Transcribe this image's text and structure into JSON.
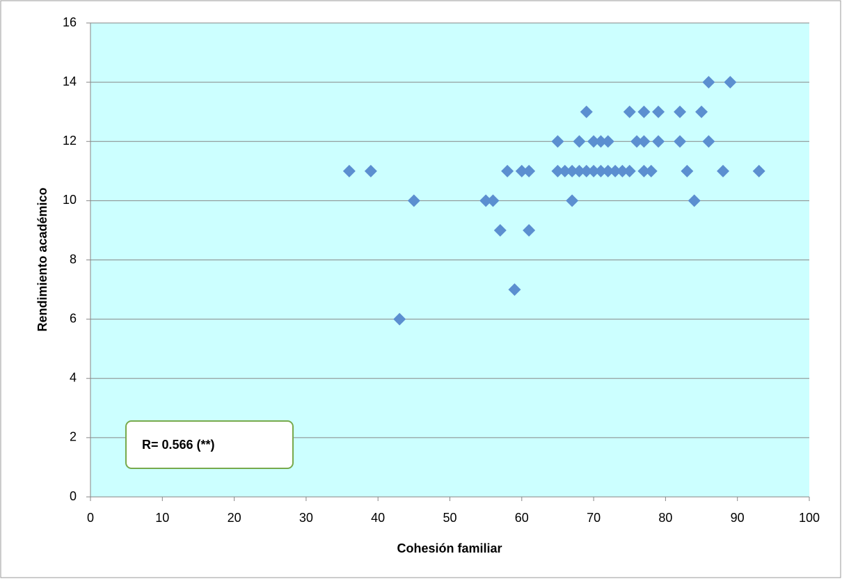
{
  "chart_data": {
    "type": "scatter",
    "x_label": "Cohesión familiar",
    "y_label": "Rendimiento académico",
    "annotation": "R= 0.566 (**)",
    "x": [
      36,
      39,
      43,
      45,
      55,
      56,
      57,
      58,
      59,
      60,
      61,
      61,
      65,
      65,
      66,
      67,
      67,
      68,
      68,
      69,
      69,
      70,
      70,
      71,
      71,
      72,
      72,
      73,
      74,
      75,
      75,
      76,
      77,
      77,
      77,
      78,
      79,
      79,
      82,
      82,
      83,
      84,
      85,
      86,
      86,
      88,
      89,
      93
    ],
    "values": [
      11,
      11,
      6,
      10,
      10,
      10,
      9,
      11,
      7,
      11,
      11,
      9,
      12,
      11,
      11,
      11,
      10,
      11,
      12,
      13,
      11,
      12,
      11,
      12,
      11,
      12,
      11,
      11,
      11,
      13,
      11,
      12,
      13,
      12,
      11,
      11,
      13,
      12,
      13,
      12,
      11,
      10,
      13,
      14,
      12,
      11,
      14,
      11
    ],
    "color": "#5b8fd0",
    "xlim": [
      0,
      100
    ],
    "xticks": [
      0,
      10,
      20,
      30,
      40,
      50,
      60,
      70,
      80,
      90,
      100
    ],
    "ylim": [
      0,
      16
    ],
    "yticks": [
      0,
      2,
      4,
      6,
      8,
      10,
      12,
      14,
      16
    ],
    "grid": true
  }
}
